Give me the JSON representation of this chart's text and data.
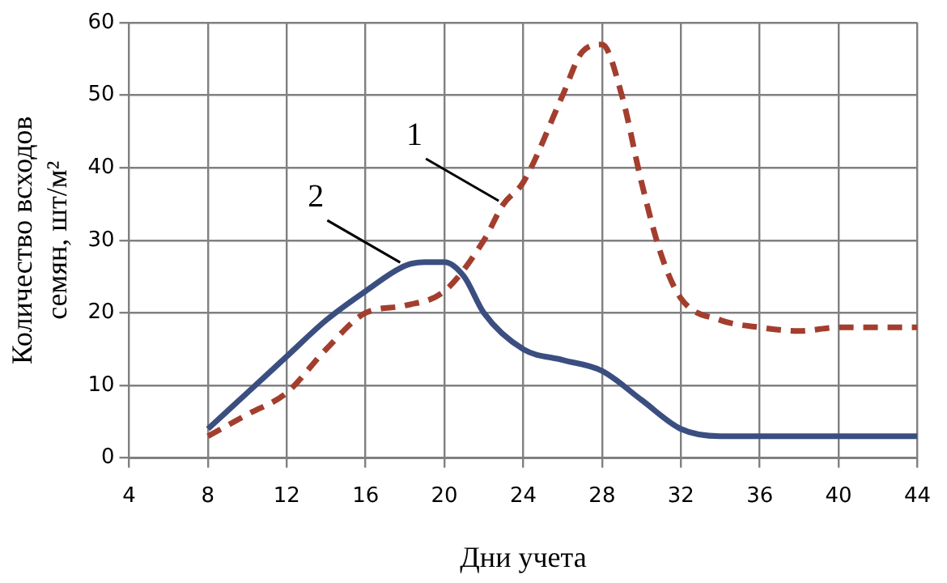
{
  "chart_data": {
    "type": "line",
    "xlabel": "Дни учета",
    "ylabel": "Количество всходов семян, шт/м²",
    "xlim": [
      4,
      44
    ],
    "xticks": [
      4,
      8,
      12,
      16,
      20,
      24,
      28,
      32,
      36,
      40,
      44
    ],
    "ylim": [
      0,
      60
    ],
    "yticks": [
      0,
      10,
      20,
      30,
      40,
      50,
      60
    ],
    "grid": true,
    "legend": false,
    "series": [
      {
        "color": "#a33e2e",
        "line_style": "dashed",
        "x": [
          8,
          10,
          12,
          14,
          16,
          18,
          20,
          22,
          23,
          24,
          26,
          27,
          28,
          29,
          30,
          31,
          32,
          34,
          36,
          38,
          40,
          44
        ],
        "values": [
          3,
          6,
          9,
          15,
          20,
          21,
          23,
          30,
          35,
          38,
          50,
          56,
          57,
          50,
          38,
          28,
          22,
          19,
          18,
          17.5,
          18,
          18
        ]
      },
      {
        "color": "#3b4e80",
        "line_style": "solid",
        "x": [
          8,
          10,
          12,
          14,
          16,
          18,
          19,
          20,
          21,
          22,
          24,
          26,
          28,
          30,
          32,
          34,
          44
        ],
        "values": [
          4,
          9,
          14,
          19,
          23,
          26.5,
          27,
          27,
          25,
          20,
          15,
          13.5,
          12,
          8,
          4,
          3,
          3
        ]
      }
    ],
    "annotations": [
      {
        "text": "1",
        "x": 23,
        "y": 35
      },
      {
        "text": "2",
        "x": 18,
        "y": 26.5
      }
    ]
  }
}
